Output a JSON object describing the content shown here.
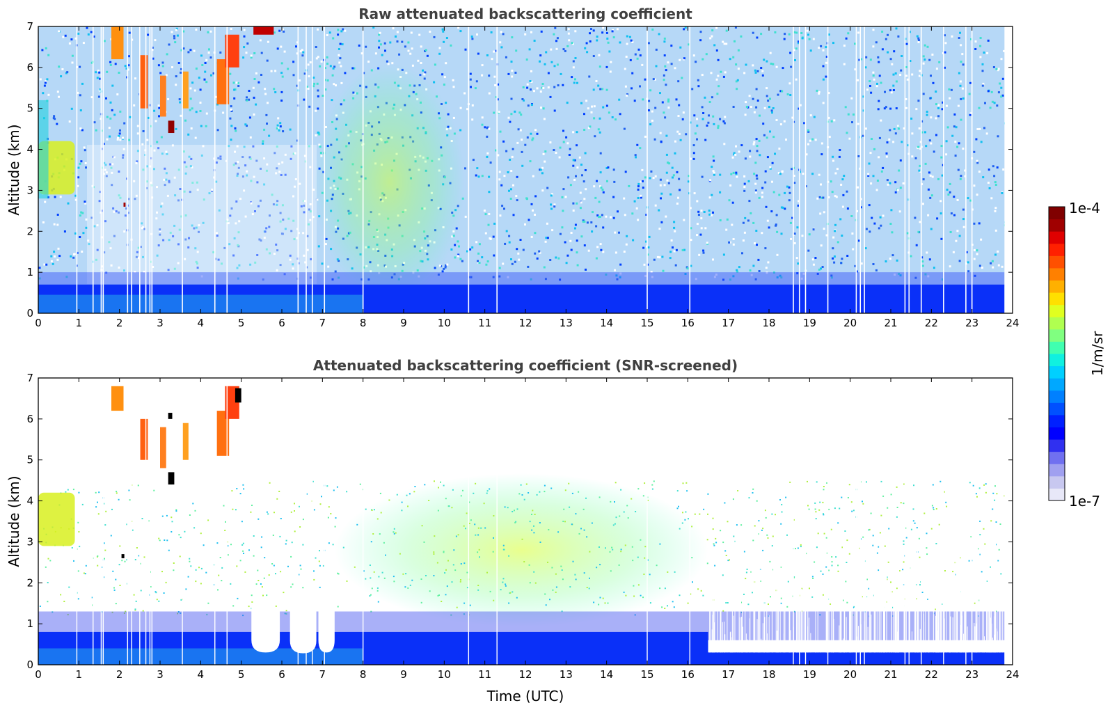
{
  "chart_data": [
    {
      "type": "heatmap",
      "title": "Raw attenuated backscattering coefficient",
      "xlabel": "",
      "ylabel": "Altitude (km)",
      "xlim": [
        0,
        24
      ],
      "ylim": [
        0,
        7
      ],
      "x_ticks": [
        "0",
        "1",
        "2",
        "3",
        "4",
        "5",
        "6",
        "7",
        "8",
        "9",
        "10",
        "11",
        "12",
        "13",
        "14",
        "15",
        "16",
        "17",
        "18",
        "19",
        "20",
        "21",
        "22",
        "23",
        "24"
      ],
      "y_ticks": [
        "0",
        "1",
        "2",
        "3",
        "4",
        "5",
        "6",
        "7"
      ],
      "colorscale": "jet (log)",
      "clim": [
        1e-07,
        0.0001
      ],
      "features": [
        {
          "name": "boundary layer",
          "x": [
            0,
            23.8
          ],
          "y": [
            0,
            0.7
          ],
          "level": "blue"
        },
        {
          "name": "elevated layer",
          "x": [
            0,
            0.9
          ],
          "y": [
            2.9,
            4.2
          ],
          "level": "yellow"
        },
        {
          "name": "high cloud",
          "x": [
            1.8,
            5.0
          ],
          "y": [
            5.0,
            7.0
          ],
          "level": "red"
        },
        {
          "name": "aerosol plume",
          "x": [
            6.8,
            10.5
          ],
          "y": [
            1.5,
            7.0
          ],
          "level": "green"
        }
      ],
      "data_gap_times": [
        0.95,
        1.35,
        1.55,
        1.6,
        2.2,
        2.3,
        2.5,
        2.65,
        2.75,
        2.8,
        3.55,
        4.35,
        4.65,
        6.4,
        6.6,
        6.75,
        7.05,
        8.0,
        10.6,
        11.3,
        15.0,
        16.05,
        18.6,
        18.75,
        18.9,
        19.45,
        20.15,
        20.25,
        20.35,
        21.35,
        21.45,
        21.75,
        22.3,
        22.85,
        23.0
      ]
    },
    {
      "type": "heatmap",
      "title": "Attenuated backscattering coefficient (SNR-screened)",
      "xlabel": "Time (UTC)",
      "ylabel": "Altitude (km)",
      "xlim": [
        0,
        24
      ],
      "ylim": [
        0,
        7
      ],
      "x_ticks": [
        "0",
        "1",
        "2",
        "3",
        "4",
        "5",
        "6",
        "7",
        "8",
        "9",
        "10",
        "11",
        "12",
        "13",
        "14",
        "15",
        "16",
        "17",
        "18",
        "19",
        "20",
        "21",
        "22",
        "23",
        "24"
      ],
      "y_ticks": [
        "0",
        "1",
        "2",
        "3",
        "4",
        "5",
        "6",
        "7"
      ],
      "colorscale": "jet (log)",
      "clim": [
        1e-07,
        0.0001
      ],
      "features": [
        {
          "name": "boundary layer",
          "x": [
            0,
            23.8
          ],
          "y": [
            0,
            0.8
          ],
          "level": "blue"
        },
        {
          "name": "elevated layer",
          "x": [
            0,
            0.9
          ],
          "y": [
            2.9,
            4.2
          ],
          "level": "yellow"
        },
        {
          "name": "high cloud",
          "x": [
            1.8,
            5.0
          ],
          "y": [
            5.0,
            7.0
          ],
          "level": "red"
        },
        {
          "name": "aerosol plume",
          "x": [
            7.3,
            16.5
          ],
          "y": [
            1.5,
            5.0
          ],
          "level": "green"
        }
      ],
      "screened_dips": [
        {
          "x": [
            5.25,
            5.95
          ],
          "top": 0.3
        },
        {
          "x": [
            6.2,
            6.85
          ],
          "top": 0.28
        },
        {
          "x": [
            6.9,
            7.3
          ],
          "top": 0.3
        }
      ]
    }
  ],
  "colorbar": {
    "label": "1/m/sr",
    "max_label": "1e-4",
    "min_label": "1e-7",
    "colors": [
      "#e8e8f8",
      "#c8c8f0",
      "#a0a0f0",
      "#7070f0",
      "#3030f0",
      "#0000ff",
      "#0020ff",
      "#0050ff",
      "#0080ff",
      "#00a8ff",
      "#00d0ff",
      "#10f0e0",
      "#40ffb0",
      "#80ff80",
      "#b0ff50",
      "#e0ff20",
      "#ffe000",
      "#ffb000",
      "#ff8000",
      "#ff5000",
      "#ff2000",
      "#e00000",
      "#a00000",
      "#800000"
    ]
  }
}
